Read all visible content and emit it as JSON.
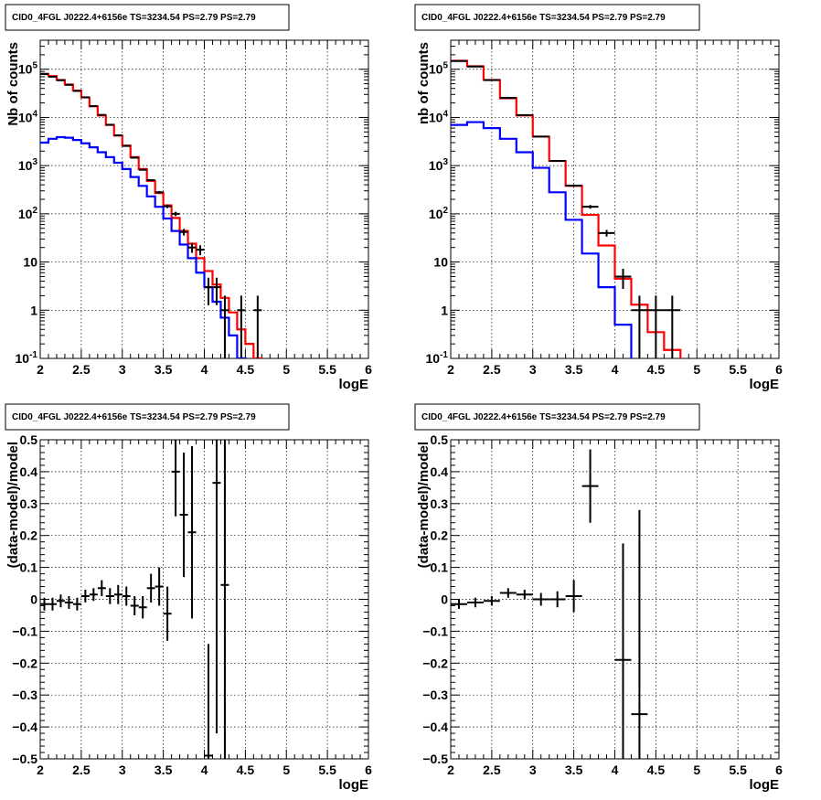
{
  "chart_data": [
    {
      "type": "line",
      "title": "CID0_4FGL J0222.4+6156e TS=3234.54 PS=2.79 PS=2.79",
      "xlabel": "logE",
      "ylabel": "Nb of counts",
      "xlim": [
        2,
        6
      ],
      "ylim": [
        0.1,
        400000
      ],
      "yscale": "log",
      "grid": true,
      "xticks": [
        "2",
        "2.5",
        "3",
        "3.5",
        "4",
        "4.5",
        "5",
        "5.5",
        "6"
      ],
      "yticks": [
        {
          "value": 0.1,
          "label": "10^-1"
        },
        {
          "value": 1,
          "label": "1"
        },
        {
          "value": 10,
          "label": "10"
        },
        {
          "value": 100,
          "label": "10^2"
        },
        {
          "value": 1000,
          "label": "10^3"
        },
        {
          "value": 10000,
          "label": "10^4"
        },
        {
          "value": 100000,
          "label": "10^5"
        }
      ],
      "bin_edges": [
        2,
        2.1,
        2.2,
        2.3,
        2.4,
        2.5,
        2.6,
        2.7,
        2.8,
        2.9,
        3,
        3.1,
        3.2,
        3.3,
        3.4,
        3.5,
        3.6,
        3.7,
        3.8,
        3.9,
        4,
        4.1,
        4.2,
        4.3,
        4.4,
        4.5,
        4.6,
        4.7,
        4.8,
        4.9,
        5,
        5.1,
        5.2,
        5.3,
        5.4,
        5.5,
        5.6,
        5.7,
        5.8,
        5.9,
        6
      ],
      "series": [
        {
          "color": "#ff0000",
          "values": [
            80000,
            72000,
            60000,
            48000,
            36000,
            26000,
            17000,
            11000,
            7000,
            4200,
            2600,
            1500,
            850,
            480,
            270,
            150,
            82,
            44,
            24,
            12,
            6.5,
            3.4,
            1.8,
            0.9,
            0.4,
            0.2,
            0.1,
            0.05,
            0.05,
            0.05,
            0.05,
            0.05,
            0.05,
            0.05,
            0.05,
            0.05,
            0.05,
            0.05,
            0.05,
            0.05
          ]
        },
        {
          "color": "#0000ff",
          "values": [
            3000,
            3600,
            3900,
            3800,
            3400,
            2900,
            2400,
            1900,
            1500,
            1150,
            850,
            580,
            380,
            230,
            140,
            80,
            44,
            23,
            12,
            6,
            3,
            1.5,
            0.7,
            0.3,
            0.1,
            0.05,
            0.05,
            0.05,
            0.05,
            0.05,
            0.05,
            0.05,
            0.05,
            0.05,
            0.05,
            0.05,
            0.05,
            0.05,
            0.05,
            0.05
          ]
        }
      ],
      "data_points": [
        {
          "x": 2.05,
          "y": 80000,
          "xerr": 0.05,
          "ylo": 79700,
          "yhi": 80300
        },
        {
          "x": 2.15,
          "y": 70000,
          "xerr": 0.05,
          "ylo": 69700,
          "yhi": 70300
        },
        {
          "x": 2.25,
          "y": 59000,
          "xerr": 0.05,
          "ylo": 58700,
          "yhi": 59300
        },
        {
          "x": 2.35,
          "y": 47500,
          "xerr": 0.05,
          "ylo": 47200,
          "yhi": 47800
        },
        {
          "x": 2.45,
          "y": 35500,
          "xerr": 0.05,
          "ylo": 35300,
          "yhi": 35700
        },
        {
          "x": 2.55,
          "y": 26200,
          "xerr": 0.05,
          "ylo": 26000,
          "yhi": 26400
        },
        {
          "x": 2.65,
          "y": 17200,
          "xerr": 0.05,
          "ylo": 17050,
          "yhi": 17350
        },
        {
          "x": 2.75,
          "y": 11300,
          "xerr": 0.05,
          "ylo": 11200,
          "yhi": 11400
        },
        {
          "x": 2.85,
          "y": 7050,
          "xerr": 0.05,
          "ylo": 6970,
          "yhi": 7130
        },
        {
          "x": 2.95,
          "y": 4250,
          "xerr": 0.05,
          "ylo": 4190,
          "yhi": 4310
        },
        {
          "x": 3.05,
          "y": 2560,
          "xerr": 0.05,
          "ylo": 2510,
          "yhi": 2610
        },
        {
          "x": 3.15,
          "y": 1460,
          "xerr": 0.05,
          "ylo": 1420,
          "yhi": 1500
        },
        {
          "x": 3.25,
          "y": 820,
          "xerr": 0.05,
          "ylo": 790,
          "yhi": 850
        },
        {
          "x": 3.35,
          "y": 500,
          "xerr": 0.05,
          "ylo": 478,
          "yhi": 522
        },
        {
          "x": 3.45,
          "y": 280,
          "xerr": 0.05,
          "ylo": 263,
          "yhi": 297
        },
        {
          "x": 3.55,
          "y": 143,
          "xerr": 0.05,
          "ylo": 131,
          "yhi": 155
        },
        {
          "x": 3.65,
          "y": 100,
          "xerr": 0.05,
          "ylo": 90,
          "yhi": 110
        },
        {
          "x": 3.75,
          "y": 42,
          "xerr": 0.05,
          "ylo": 35.5,
          "yhi": 48.5
        },
        {
          "x": 3.85,
          "y": 20,
          "xerr": 0.05,
          "ylo": 15.5,
          "yhi": 24.5
        },
        {
          "x": 3.95,
          "y": 18,
          "xerr": 0.05,
          "ylo": 13.8,
          "yhi": 22.2
        },
        {
          "x": 4.05,
          "y": 3,
          "xerr": 0.05,
          "ylo": 1.27,
          "yhi": 4.73
        },
        {
          "x": 4.15,
          "y": 3,
          "xerr": 0.05,
          "ylo": 1.27,
          "yhi": 4.73
        },
        {
          "x": 4.25,
          "y": 1,
          "xerr": 0.05,
          "ylo": 0.05,
          "yhi": 2
        },
        {
          "x": 4.45,
          "y": 1,
          "xerr": 0.05,
          "ylo": 0.05,
          "yhi": 2
        },
        {
          "x": 4.65,
          "y": 1,
          "xerr": 0.05,
          "ylo": 0.05,
          "yhi": 2
        }
      ]
    },
    {
      "type": "line",
      "title": "CID0_4FGL J0222.4+6156e TS=3234.54 PS=2.79 PS=2.79",
      "xlabel": "logE",
      "ylabel": "nb of counts",
      "xlim": [
        2,
        6
      ],
      "ylim": [
        0.1,
        400000
      ],
      "yscale": "log",
      "grid": true,
      "xticks": [
        "2",
        "2.5",
        "3",
        "3.5",
        "4",
        "4.5",
        "5",
        "5.5",
        "6"
      ],
      "yticks": [
        {
          "value": 0.1,
          "label": "10^-1"
        },
        {
          "value": 1,
          "label": "1"
        },
        {
          "value": 10,
          "label": "10"
        },
        {
          "value": 100,
          "label": "10^2"
        },
        {
          "value": 1000,
          "label": "10^3"
        },
        {
          "value": 10000,
          "label": "10^4"
        },
        {
          "value": 100000,
          "label": "10^5"
        }
      ],
      "bin_edges": [
        2,
        2.2,
        2.4,
        2.6,
        2.8,
        3,
        3.2,
        3.4,
        3.6,
        3.8,
        4,
        4.2,
        4.4,
        4.6,
        4.8,
        5,
        5.2,
        5.4,
        5.6,
        5.8,
        6
      ],
      "series": [
        {
          "color": "#ff0000",
          "values": [
            150000,
            115000,
            60000,
            25000,
            11000,
            4000,
            1250,
            380,
            95,
            22,
            4.5,
            1.3,
            0.35,
            0.15,
            0.05,
            0.05,
            0.05,
            0.05,
            0.05,
            0.05
          ]
        },
        {
          "color": "#0000ff",
          "values": [
            7000,
            8000,
            6000,
            3600,
            1900,
            900,
            280,
            75,
            15,
            3,
            0.5,
            0.08,
            0.05,
            0.05,
            0.05,
            0.05,
            0.05,
            0.05,
            0.05,
            0.05
          ]
        }
      ],
      "data_points": [
        {
          "x": 2.1,
          "y": 148000,
          "xerr": 0.1,
          "ylo": 147600,
          "yhi": 148400
        },
        {
          "x": 2.3,
          "y": 114000,
          "xerr": 0.1,
          "ylo": 113700,
          "yhi": 114300
        },
        {
          "x": 2.5,
          "y": 59500,
          "xerr": 0.1,
          "ylo": 59250,
          "yhi": 59750
        },
        {
          "x": 2.7,
          "y": 25500,
          "xerr": 0.1,
          "ylo": 25340,
          "yhi": 25660
        },
        {
          "x": 2.9,
          "y": 11200,
          "xerr": 0.1,
          "ylo": 11090,
          "yhi": 11310
        },
        {
          "x": 3.1,
          "y": 4000,
          "xerr": 0.1,
          "ylo": 3937,
          "yhi": 4063
        },
        {
          "x": 3.3,
          "y": 1250,
          "xerr": 0.1,
          "ylo": 1215,
          "yhi": 1285
        },
        {
          "x": 3.5,
          "y": 385,
          "xerr": 0.1,
          "ylo": 365,
          "yhi": 405
        },
        {
          "x": 3.7,
          "y": 140,
          "xerr": 0.1,
          "ylo": 128,
          "yhi": 152
        },
        {
          "x": 3.9,
          "y": 40,
          "xerr": 0.1,
          "ylo": 33.7,
          "yhi": 46.3
        },
        {
          "x": 4.1,
          "y": 5,
          "xerr": 0.1,
          "ylo": 2.76,
          "yhi": 7.24
        },
        {
          "x": 4.3,
          "y": 1,
          "xerr": 0.1,
          "ylo": 0.05,
          "yhi": 2
        },
        {
          "x": 4.5,
          "y": 1,
          "xerr": 0.1,
          "ylo": 0.05,
          "yhi": 2
        },
        {
          "x": 4.7,
          "y": 1,
          "xerr": 0.1,
          "ylo": 0.05,
          "yhi": 2
        }
      ]
    },
    {
      "type": "scatter",
      "title": "CID0_4FGL J0222.4+6156e TS=3234.54 PS=2.79 PS=2.79",
      "xlabel": "logE",
      "ylabel": "(data-model)/model",
      "xlim": [
        2,
        6
      ],
      "ylim": [
        -0.5,
        0.5
      ],
      "yscale": "linear",
      "grid": true,
      "xticks": [
        "2",
        "2.5",
        "3",
        "3.5",
        "4",
        "4.5",
        "5",
        "5.5",
        "6"
      ],
      "yticks": [
        {
          "value": -0.5,
          "label": "−0.5"
        },
        {
          "value": -0.4,
          "label": "−0.4"
        },
        {
          "value": -0.3,
          "label": "−0.3"
        },
        {
          "value": -0.2,
          "label": "−0.2"
        },
        {
          "value": -0.1,
          "label": "−0.1"
        },
        {
          "value": 0,
          "label": "0"
        },
        {
          "value": 0.1,
          "label": "0.1"
        },
        {
          "value": 0.2,
          "label": "0.2"
        },
        {
          "value": 0.3,
          "label": "0.3"
        },
        {
          "value": 0.4,
          "label": "0.4"
        },
        {
          "value": 0.5,
          "label": "0.5"
        }
      ],
      "data_points": [
        {
          "x": 2.05,
          "y": -0.015,
          "xerr": 0.05,
          "ylo": -0.035,
          "yhi": 0.005
        },
        {
          "x": 2.15,
          "y": -0.015,
          "xerr": 0.05,
          "ylo": -0.035,
          "yhi": 0.005
        },
        {
          "x": 2.25,
          "y": -0.005,
          "xerr": 0.05,
          "ylo": -0.025,
          "yhi": 0.015
        },
        {
          "x": 2.35,
          "y": -0.01,
          "xerr": 0.05,
          "ylo": -0.03,
          "yhi": 0.01
        },
        {
          "x": 2.45,
          "y": -0.015,
          "xerr": 0.05,
          "ylo": -0.035,
          "yhi": 0.005
        },
        {
          "x": 2.55,
          "y": 0.01,
          "xerr": 0.05,
          "ylo": -0.01,
          "yhi": 0.03
        },
        {
          "x": 2.65,
          "y": 0.015,
          "xerr": 0.05,
          "ylo": -0.005,
          "yhi": 0.035
        },
        {
          "x": 2.75,
          "y": 0.035,
          "xerr": 0.05,
          "ylo": 0.01,
          "yhi": 0.06
        },
        {
          "x": 2.85,
          "y": 0.01,
          "xerr": 0.05,
          "ylo": -0.015,
          "yhi": 0.035
        },
        {
          "x": 2.95,
          "y": 0.015,
          "xerr": 0.05,
          "ylo": -0.015,
          "yhi": 0.045
        },
        {
          "x": 3.05,
          "y": 0.01,
          "xerr": 0.05,
          "ylo": -0.02,
          "yhi": 0.04
        },
        {
          "x": 3.15,
          "y": -0.02,
          "xerr": 0.05,
          "ylo": -0.05,
          "yhi": 0.01
        },
        {
          "x": 3.25,
          "y": -0.025,
          "xerr": 0.05,
          "ylo": -0.06,
          "yhi": 0.01
        },
        {
          "x": 3.35,
          "y": 0.035,
          "xerr": 0.05,
          "ylo": -0.01,
          "yhi": 0.08
        },
        {
          "x": 3.45,
          "y": 0.04,
          "xerr": 0.05,
          "ylo": -0.02,
          "yhi": 0.1
        },
        {
          "x": 3.55,
          "y": -0.045,
          "xerr": 0.05,
          "ylo": -0.13,
          "yhi": 0.04
        },
        {
          "x": 3.65,
          "y": 0.4,
          "xerr": 0.05,
          "ylo": 0.26,
          "yhi": 0.5
        },
        {
          "x": 3.75,
          "y": 0.265,
          "xerr": 0.05,
          "ylo": 0.07,
          "yhi": 0.46
        },
        {
          "x": 3.85,
          "y": 0.21,
          "xerr": 0.05,
          "ylo": -0.06,
          "yhi": 0.48
        },
        {
          "x": 4.05,
          "y": -0.49,
          "xerr": 0.05,
          "ylo": -0.5,
          "yhi": -0.14
        },
        {
          "x": 4.15,
          "y": 0.365,
          "xerr": 0.05,
          "ylo": -0.42,
          "yhi": 0.5
        },
        {
          "x": 4.25,
          "y": 0.045,
          "xerr": 0.05,
          "ylo": -0.5,
          "yhi": 0.5
        }
      ]
    },
    {
      "type": "scatter",
      "title": "CID0_4FGL J0222.4+6156e TS=3234.54 PS=2.79 PS=2.79",
      "xlabel": "logE",
      "ylabel": "(data-model)/model",
      "xlim": [
        2,
        6
      ],
      "ylim": [
        -0.5,
        0.5
      ],
      "yscale": "linear",
      "grid": true,
      "xticks": [
        "2",
        "2.5",
        "3",
        "3.5",
        "4",
        "4.5",
        "5",
        "5.5",
        "6"
      ],
      "yticks": [
        {
          "value": -0.5,
          "label": "−0.5"
        },
        {
          "value": -0.4,
          "label": "−0.4"
        },
        {
          "value": -0.3,
          "label": "−0.3"
        },
        {
          "value": -0.2,
          "label": "−0.2"
        },
        {
          "value": -0.1,
          "label": "−0.1"
        },
        {
          "value": 0,
          "label": "0"
        },
        {
          "value": 0.1,
          "label": "0.1"
        },
        {
          "value": 0.2,
          "label": "0.2"
        },
        {
          "value": 0.3,
          "label": "0.3"
        },
        {
          "value": 0.4,
          "label": "0.4"
        },
        {
          "value": 0.5,
          "label": "0.5"
        }
      ],
      "data_points": [
        {
          "x": 2.1,
          "y": -0.015,
          "xerr": 0.1,
          "ylo": -0.03,
          "yhi": 0.0
        },
        {
          "x": 2.3,
          "y": -0.01,
          "xerr": 0.1,
          "ylo": -0.025,
          "yhi": 0.005
        },
        {
          "x": 2.5,
          "y": -0.005,
          "xerr": 0.1,
          "ylo": -0.02,
          "yhi": 0.01
        },
        {
          "x": 2.7,
          "y": 0.02,
          "xerr": 0.1,
          "ylo": 0.005,
          "yhi": 0.035
        },
        {
          "x": 2.9,
          "y": 0.015,
          "xerr": 0.1,
          "ylo": 0.0,
          "yhi": 0.03
        },
        {
          "x": 3.1,
          "y": 0.0,
          "xerr": 0.1,
          "ylo": -0.02,
          "yhi": 0.02
        },
        {
          "x": 3.3,
          "y": 0.0,
          "xerr": 0.1,
          "ylo": -0.025,
          "yhi": 0.025
        },
        {
          "x": 3.5,
          "y": 0.01,
          "xerr": 0.1,
          "ylo": -0.04,
          "yhi": 0.06
        },
        {
          "x": 3.7,
          "y": 0.355,
          "xerr": 0.1,
          "ylo": 0.24,
          "yhi": 0.47
        },
        {
          "x": 4.1,
          "y": -0.19,
          "xerr": 0.1,
          "ylo": -0.5,
          "yhi": 0.175
        },
        {
          "x": 4.3,
          "y": -0.36,
          "xerr": 0.1,
          "ylo": -0.5,
          "yhi": 0.28
        }
      ]
    }
  ]
}
